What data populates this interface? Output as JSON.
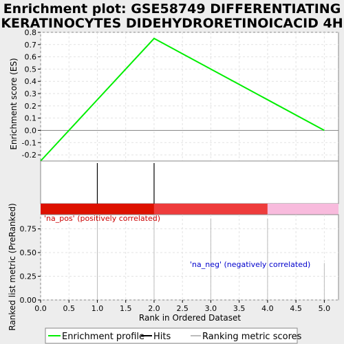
{
  "chart_data": {
    "type": "line",
    "title": [
      "Enrichment plot: GSE58749 DIFFERENTIATING",
      "KERATINOCYTES DIDEHYDRORETINOICACID 4H"
    ],
    "top_panel": {
      "ylabel": "Enrichment score (ES)",
      "ylim": [
        -0.25,
        0.8
      ],
      "yticks": [
        0.8,
        0.7,
        0.6,
        0.5,
        0.4,
        0.3,
        0.2,
        0.1,
        0.0,
        -0.1,
        -0.2
      ],
      "ytick_labels": [
        "0.8",
        "0.7",
        "0.6",
        "0.5",
        "0.4",
        "0.3",
        "0.2",
        "0.1",
        "0.0",
        "-0.1",
        "-0.2"
      ],
      "series": [
        {
          "name": "Enrichment profile",
          "color": "#00ee00",
          "x": [
            0,
            2,
            5
          ],
          "y": [
            -0.25,
            0.75,
            0.0
          ]
        }
      ],
      "grid": true
    },
    "hits": {
      "positions": [
        1,
        2
      ],
      "color": "#000000"
    },
    "colorbar": [
      {
        "from": 0,
        "to": 2,
        "color": "#dd1100"
      },
      {
        "from": 2,
        "to": 4,
        "color": "#ee3c3c"
      },
      {
        "from": 4,
        "to": 5.25,
        "color": "#f8bbdd"
      }
    ],
    "bottom_panel": {
      "ylabel": "Ranked list metric (PreRanked)",
      "xlabel": "Rank in Ordered Dataset",
      "ylim": [
        0,
        0.9
      ],
      "yticks": [
        0.0,
        0.25,
        0.5,
        0.75
      ],
      "ytick_labels": [
        "0.00",
        "0.25",
        "0.50",
        "0.75"
      ],
      "xlim": [
        0,
        5.25
      ],
      "xticks": [
        0.0,
        0.5,
        1.0,
        1.5,
        2.0,
        2.5,
        3.0,
        3.5,
        4.0,
        4.5,
        5.0
      ],
      "xtick_labels": [
        "0.0",
        "0.5",
        "1.0",
        "1.5",
        "2.0",
        "2.5",
        "3.0",
        "3.5",
        "4.0",
        "4.5",
        "5.0"
      ],
      "metric_bars": {
        "x": [
          1,
          2,
          3,
          4,
          5
        ],
        "values": [
          0.9,
          0.9,
          0.86,
          0.86,
          0.39
        ]
      },
      "grid": true
    },
    "annotations": [
      {
        "text": "'na_pos' (positively correlated)",
        "color": "#cc0000"
      },
      {
        "text": "'na_neg' (negatively correlated)",
        "color": "#0000cc"
      }
    ],
    "legend": {
      "placement": "bottom",
      "entries": [
        {
          "label": "Enrichment profile",
          "color": "#00ee00"
        },
        {
          "label": "Hits",
          "color": "#000000"
        },
        {
          "label": "Ranking metric scores",
          "color": "#bbbbbb"
        }
      ]
    }
  }
}
